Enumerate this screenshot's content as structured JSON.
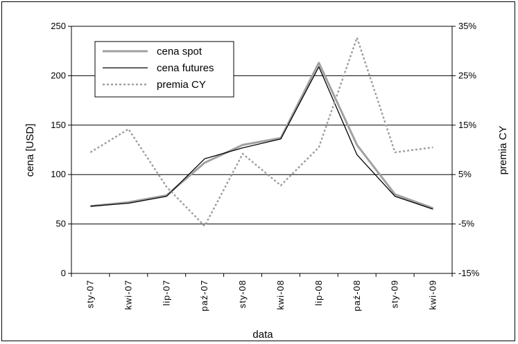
{
  "chart_data": {
    "type": "line",
    "categories": [
      "sty-07",
      "kwi-07",
      "lip-07",
      "paź-07",
      "sty-08",
      "kwi-08",
      "lip-08",
      "paź-08",
      "sty-09",
      "kwi-09"
    ],
    "xlabel": "data",
    "ylabel": "cena [USD]",
    "y2label": "premia CY",
    "ylim": [
      0,
      250
    ],
    "y2lim": [
      -15,
      35
    ],
    "y_ticks": [
      "0",
      "50",
      "100",
      "150",
      "200",
      "250"
    ],
    "y2_ticks": [
      "-15%",
      "-5%",
      "5%",
      "15%",
      "25%",
      "35%"
    ],
    "grid": "horizontal",
    "legend_position": "top-left",
    "series": [
      {
        "name": "cena spot",
        "axis": "left",
        "color": "#a0a0a0",
        "style": "solid",
        "values": [
          68,
          72,
          79,
          112,
          130,
          137,
          213,
          130,
          80,
          66
        ]
      },
      {
        "name": "cena futures",
        "axis": "left",
        "color": "#000000",
        "style": "solid",
        "values": [
          68,
          71,
          78,
          116,
          127,
          136,
          209,
          120,
          78,
          65
        ]
      },
      {
        "name": "premia CY",
        "axis": "right",
        "color": "#a0a0a0",
        "style": "dotted",
        "values": [
          9.5,
          14.2,
          2.5,
          -5.4,
          9.2,
          2.8,
          10.5,
          32.7,
          9.5,
          10.5
        ]
      }
    ]
  }
}
